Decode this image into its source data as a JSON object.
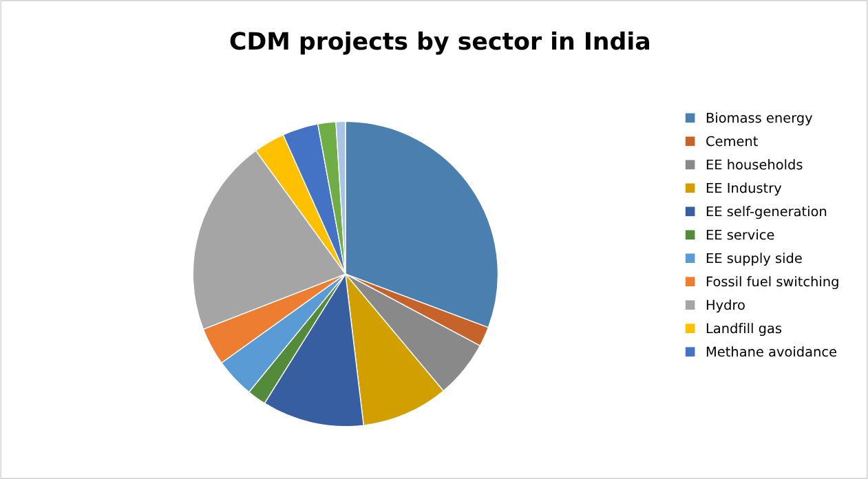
{
  "chart_data": {
    "type": "pie",
    "title": "CDM projects by sector in India",
    "categories": [
      "Biomass energy",
      "Cement",
      "EE households",
      "EE Industry",
      "EE self-generation",
      "EE service",
      "EE supply side",
      "Fossil fuel switching",
      "Hydro",
      "Landfill gas",
      "Methane avoidance",
      null,
      null
    ],
    "values": [
      30.7,
      2.1,
      6.1,
      9.2,
      10.8,
      2.0,
      4.2,
      4.0,
      20.9,
      3.3,
      3.8,
      1.9,
      1.0
    ],
    "colors": [
      "#4a7fb0",
      "#c5632a",
      "#898989",
      "#d19f00",
      "#365ea0",
      "#548b3a",
      "#5b9bd5",
      "#ed7d31",
      "#a5a5a5",
      "#ffc000",
      "#4472c4",
      "#70ad47",
      "#a9c4e6"
    ],
    "legend": "right"
  }
}
